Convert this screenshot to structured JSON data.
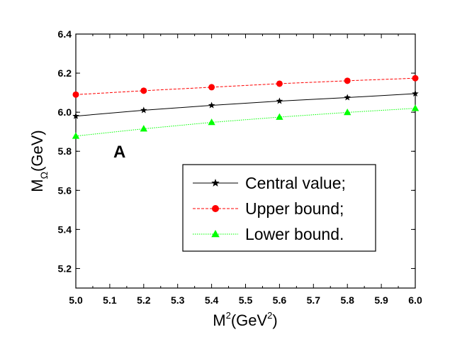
{
  "chart_data": {
    "type": "line",
    "x": [
      5.0,
      5.2,
      5.4,
      5.6,
      5.8,
      6.0
    ],
    "series": [
      {
        "name": "Central value;",
        "values": [
          5.98,
          6.01,
          6.035,
          6.057,
          6.075,
          6.095
        ],
        "color": "#000000",
        "marker": "star",
        "dash": "solid"
      },
      {
        "name": "Upper bound;",
        "values": [
          6.09,
          6.11,
          6.128,
          6.146,
          6.161,
          6.174
        ],
        "color": "#ff0000",
        "marker": "circle",
        "dash": "dashed"
      },
      {
        "name": "Lower bound.",
        "values": [
          5.878,
          5.915,
          5.948,
          5.975,
          5.999,
          6.02
        ],
        "color": "#00ff00",
        "marker": "triangle",
        "dash": "dotted"
      }
    ],
    "xlabel_base": "M",
    "xlabel_sup": "2",
    "xlabel_mid": "(GeV",
    "xlabel_sup2": "2",
    "xlabel_end": ")",
    "ylabel_base": "M",
    "ylabel_sub": "Ω",
    "ylabel_end": "(GeV)",
    "xlim": [
      5.0,
      6.0
    ],
    "ylim": [
      5.1,
      6.4
    ],
    "xticks": [
      "5.0",
      "5.1",
      "5.2",
      "5.3",
      "5.4",
      "5.5",
      "5.6",
      "5.7",
      "5.8",
      "5.9",
      "6.0"
    ],
    "yticks": [
      "5.2",
      "5.4",
      "5.6",
      "5.8",
      "6.0",
      "6.2",
      "6.4"
    ],
    "annotation": "A",
    "legend_position": "lower-right",
    "grid": false
  }
}
